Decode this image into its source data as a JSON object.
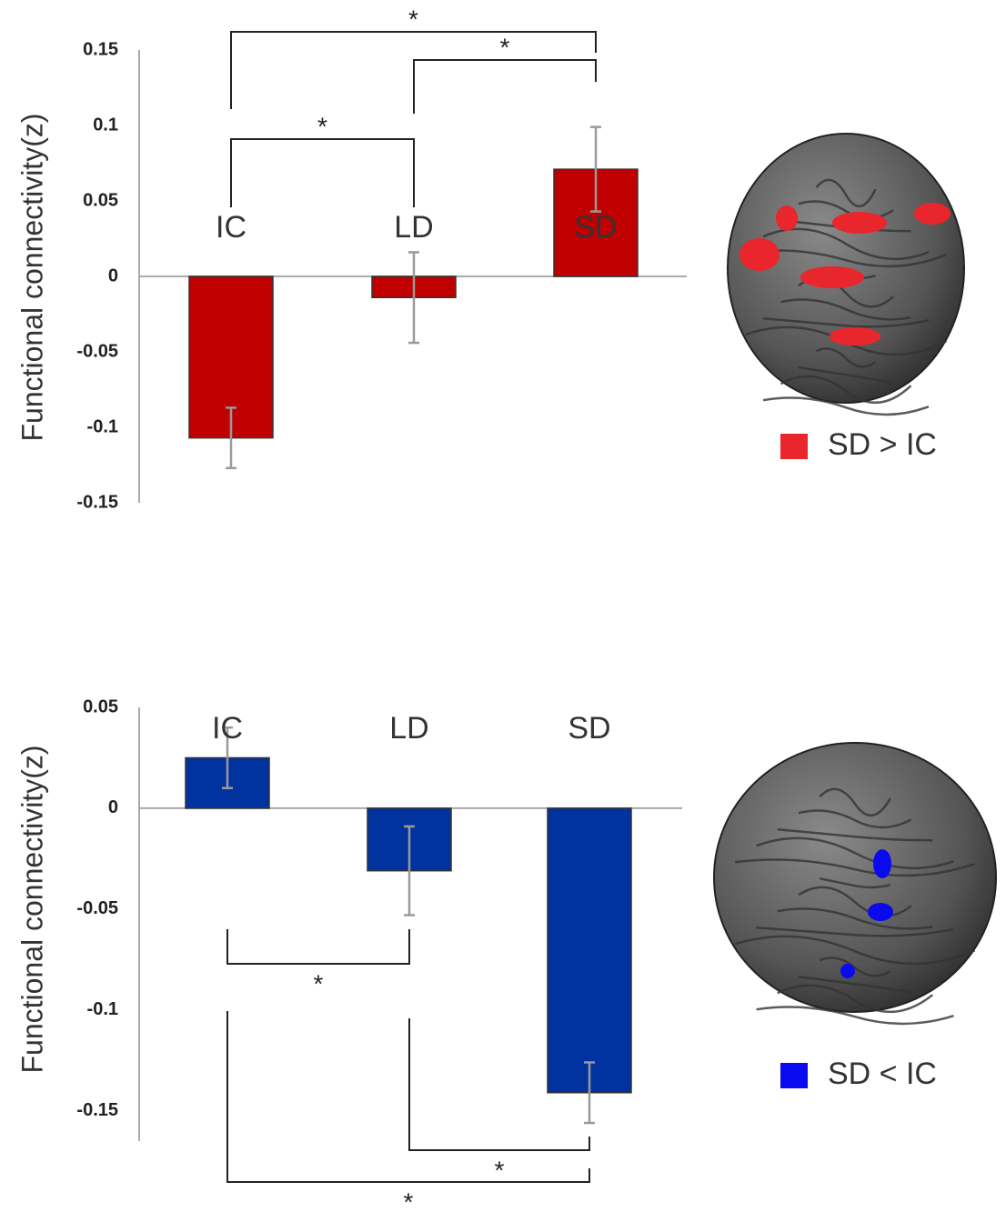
{
  "chart_data": [
    {
      "type": "bar",
      "ylabel": "Functional connectivity(z)",
      "categories": [
        "IC",
        "LD",
        "SD"
      ],
      "values": [
        -0.107,
        -0.014,
        0.071
      ],
      "errors": [
        0.02,
        0.03,
        0.028
      ],
      "color": "#c00000",
      "ylim": [
        -0.15,
        0.15
      ],
      "yticks": [
        0.15,
        0.1,
        0.05,
        0,
        -0.05,
        -0.1,
        -0.15
      ],
      "significance": [
        {
          "from": 0,
          "to": 2,
          "label": "*"
        },
        {
          "from": 1,
          "to": 2,
          "label": "*"
        },
        {
          "from": 0,
          "to": 1,
          "label": "*"
        }
      ],
      "legend": {
        "label": "SD > IC",
        "color": "#e8262b"
      }
    },
    {
      "type": "bar",
      "ylabel": "Functional connectivity(z)",
      "categories": [
        "IC",
        "LD",
        "SD"
      ],
      "values": [
        0.025,
        -0.031,
        -0.141
      ],
      "errors": [
        0.015,
        0.022,
        0.015
      ],
      "color": "#0033a0",
      "ylim": [
        -0.165,
        0.05
      ],
      "yticks": [
        0.05,
        0,
        -0.05,
        -0.1,
        -0.15
      ],
      "significance": [
        {
          "from": 0,
          "to": 1,
          "label": "*"
        },
        {
          "from": 1,
          "to": 2,
          "label": "*"
        },
        {
          "from": 0,
          "to": 2,
          "label": "*"
        }
      ],
      "legend": {
        "label": "SD < IC",
        "color": "#0a0af0"
      }
    }
  ]
}
